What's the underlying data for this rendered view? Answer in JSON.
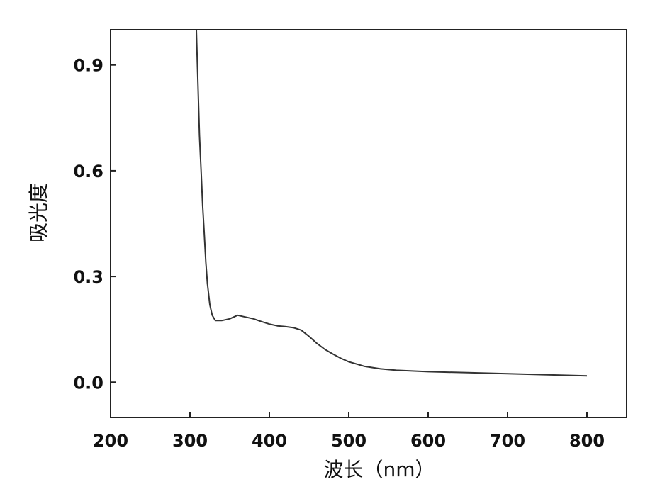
{
  "chart_data": {
    "type": "line",
    "xlabel": "波长（nm）",
    "ylabel": "吸光度",
    "xlim": [
      200,
      850
    ],
    "ylim": [
      -0.1,
      1.0
    ],
    "xticks": [
      200,
      300,
      400,
      500,
      600,
      700,
      800
    ],
    "yticks": [
      0.0,
      0.3,
      0.6,
      0.9
    ],
    "xtick_labels": [
      "200",
      "300",
      "400",
      "500",
      "600",
      "700",
      "800"
    ],
    "ytick_labels": [
      "0.0",
      "0.3",
      "0.6",
      "0.9"
    ],
    "grid": false,
    "legend": "none",
    "line_color": "#333333",
    "series": [
      {
        "x": [
          308,
          310,
          312,
          314,
          316,
          318,
          320,
          322,
          325,
          328,
          332,
          340,
          350,
          360,
          370,
          380,
          390,
          400,
          410,
          420,
          430,
          440,
          450,
          460,
          470,
          480,
          490,
          500,
          520,
          540,
          560,
          580,
          600,
          650,
          700,
          750,
          800
        ],
        "y": [
          1.0,
          0.85,
          0.7,
          0.6,
          0.5,
          0.42,
          0.34,
          0.28,
          0.22,
          0.19,
          0.175,
          0.175,
          0.18,
          0.19,
          0.185,
          0.18,
          0.172,
          0.165,
          0.16,
          0.158,
          0.155,
          0.148,
          0.13,
          0.11,
          0.093,
          0.08,
          0.068,
          0.058,
          0.045,
          0.038,
          0.034,
          0.032,
          0.03,
          0.027,
          0.024,
          0.021,
          0.018
        ]
      }
    ]
  }
}
